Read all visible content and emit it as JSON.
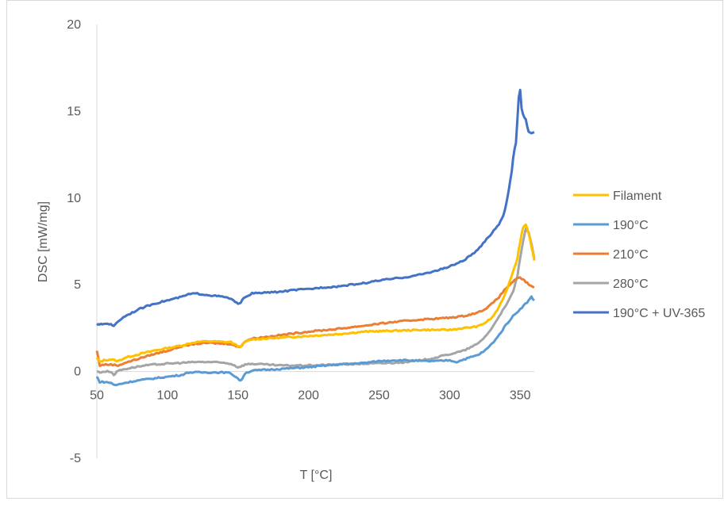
{
  "chart_data": {
    "type": "line",
    "title": "",
    "xlabel": "T [°C]",
    "ylabel": "DSC [mW/mg]",
    "xlim": [
      50,
      360
    ],
    "ylim": [
      -5,
      20
    ],
    "x_ticks": [
      50,
      100,
      150,
      200,
      250,
      300,
      350
    ],
    "y_ticks": [
      -5,
      0,
      5,
      10,
      15,
      20
    ],
    "grid": false,
    "legend_position": "right",
    "series": [
      {
        "name": "Filament",
        "color": "#FFC000",
        "x": [
          50,
          52,
          55,
          60,
          65,
          70,
          80,
          90,
          100,
          110,
          120,
          130,
          140,
          145,
          150,
          152,
          155,
          160,
          170,
          180,
          200,
          220,
          240,
          260,
          280,
          300,
          310,
          320,
          325,
          330,
          335,
          340,
          343,
          345,
          348,
          350,
          352,
          354,
          356,
          358,
          360
        ],
        "y": [
          0.8,
          0.55,
          0.65,
          0.7,
          0.6,
          0.8,
          1.0,
          1.2,
          1.35,
          1.5,
          1.7,
          1.75,
          1.7,
          1.7,
          1.45,
          1.45,
          1.7,
          1.85,
          1.9,
          1.95,
          2.05,
          2.15,
          2.3,
          2.35,
          2.4,
          2.4,
          2.5,
          2.6,
          2.8,
          3.1,
          3.7,
          4.6,
          5.3,
          5.8,
          6.5,
          7.5,
          8.3,
          8.5,
          8.0,
          7.2,
          6.4
        ]
      },
      {
        "name": "190°C",
        "color": "#5B9BD5",
        "x": [
          50,
          52,
          55,
          60,
          63,
          65,
          70,
          80,
          90,
          100,
          110,
          115,
          120,
          130,
          140,
          145,
          150,
          152,
          155,
          160,
          170,
          180,
          200,
          220,
          240,
          250,
          260,
          270,
          280,
          290,
          300,
          305,
          310,
          320,
          325,
          330,
          335,
          340,
          345,
          350,
          355,
          358,
          360
        ],
        "y": [
          -0.3,
          -0.6,
          -0.6,
          -0.65,
          -0.8,
          -0.75,
          -0.65,
          -0.5,
          -0.4,
          -0.3,
          -0.2,
          -0.05,
          -0.05,
          -0.05,
          -0.05,
          -0.1,
          -0.4,
          -0.55,
          -0.1,
          0.05,
          0.1,
          0.15,
          0.25,
          0.4,
          0.5,
          0.6,
          0.65,
          0.65,
          0.6,
          0.6,
          0.65,
          0.55,
          0.7,
          0.95,
          1.2,
          1.6,
          2.1,
          2.7,
          3.2,
          3.6,
          4.0,
          4.3,
          4.1
        ]
      },
      {
        "name": "210°C",
        "color": "#ED7D31",
        "x": [
          50,
          52,
          55,
          60,
          65,
          70,
          80,
          90,
          100,
          110,
          120,
          130,
          140,
          145,
          150,
          152,
          155,
          160,
          170,
          180,
          200,
          220,
          240,
          260,
          280,
          300,
          310,
          320,
          325,
          330,
          335,
          340,
          345,
          348,
          350,
          352,
          355,
          358,
          360
        ],
        "y": [
          1.2,
          0.35,
          0.4,
          0.4,
          0.35,
          0.5,
          0.75,
          1.0,
          1.2,
          1.45,
          1.6,
          1.65,
          1.6,
          1.6,
          1.4,
          1.45,
          1.75,
          1.9,
          2.0,
          2.1,
          2.3,
          2.45,
          2.65,
          2.85,
          3.0,
          3.1,
          3.2,
          3.4,
          3.6,
          3.9,
          4.3,
          4.8,
          5.2,
          5.35,
          5.4,
          5.3,
          5.1,
          4.9,
          4.85
        ]
      },
      {
        "name": "280°C",
        "color": "#A5A5A5",
        "x": [
          50,
          52,
          55,
          60,
          62,
          65,
          70,
          80,
          90,
          100,
          110,
          120,
          130,
          140,
          145,
          150,
          152,
          155,
          160,
          170,
          180,
          200,
          220,
          240,
          260,
          270,
          280,
          290,
          300,
          310,
          320,
          325,
          330,
          335,
          340,
          345,
          348,
          350,
          352,
          354,
          356,
          358,
          360
        ],
        "y": [
          0.0,
          -0.05,
          0.0,
          0.0,
          -0.2,
          0.05,
          0.15,
          0.3,
          0.4,
          0.45,
          0.5,
          0.55,
          0.55,
          0.5,
          0.45,
          0.25,
          0.3,
          0.4,
          0.45,
          0.4,
          0.35,
          0.35,
          0.4,
          0.45,
          0.5,
          0.55,
          0.65,
          0.8,
          1.0,
          1.2,
          1.6,
          2.0,
          2.5,
          3.2,
          3.8,
          4.6,
          5.5,
          6.5,
          7.5,
          8.2,
          8.0,
          7.4,
          6.5
        ]
      },
      {
        "name": "190°C + UV-365",
        "color": "#4472C4",
        "x": [
          50,
          52,
          55,
          60,
          62,
          65,
          70,
          80,
          90,
          100,
          110,
          115,
          120,
          130,
          140,
          145,
          148,
          150,
          152,
          155,
          160,
          170,
          180,
          190,
          200,
          210,
          220,
          230,
          240,
          250,
          260,
          270,
          280,
          290,
          300,
          310,
          320,
          325,
          330,
          335,
          338,
          340,
          342,
          344,
          345,
          346,
          347,
          348,
          349,
          350,
          351,
          352,
          354,
          356,
          358,
          360
        ],
        "y": [
          2.7,
          2.7,
          2.75,
          2.75,
          2.6,
          2.9,
          3.2,
          3.6,
          3.9,
          4.1,
          4.3,
          4.45,
          4.5,
          4.4,
          4.3,
          4.2,
          4.0,
          3.9,
          4.0,
          4.3,
          4.5,
          4.55,
          4.6,
          4.7,
          4.75,
          4.85,
          4.9,
          5.0,
          5.1,
          5.25,
          5.35,
          5.45,
          5.6,
          5.8,
          6.05,
          6.4,
          7.0,
          7.5,
          8.0,
          8.5,
          9.0,
          9.6,
          10.5,
          11.5,
          12.3,
          12.8,
          13.2,
          14.5,
          15.8,
          16.2,
          15.2,
          14.8,
          14.5,
          13.8,
          13.7,
          13.8
        ]
      }
    ]
  }
}
